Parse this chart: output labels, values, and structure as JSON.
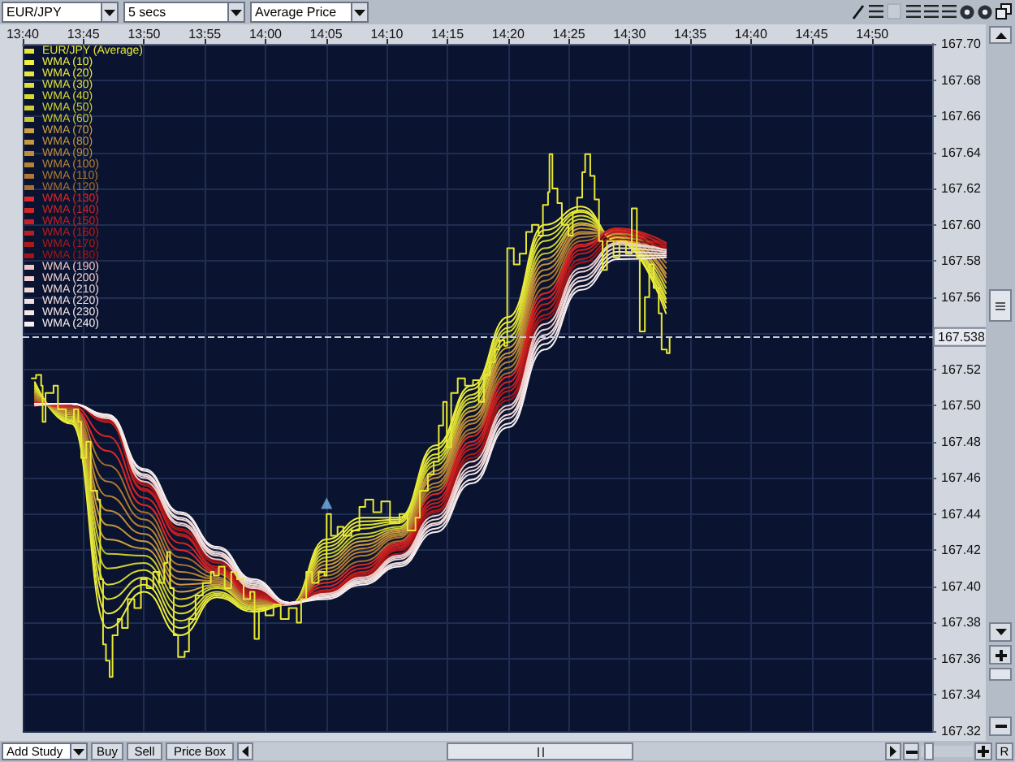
{
  "chart_data": {
    "type": "line",
    "title": "EUR/JPY",
    "annotations": [
      "5 secs",
      "Average Price",
      "Add Study",
      "Buy",
      "Sell",
      "Price Box",
      "R"
    ],
    "x": [
      13.6833,
      13.7333,
      13.7833,
      13.8333,
      13.8833,
      13.9333,
      13.9833,
      14.0333,
      14.0833,
      14.1333,
      14.1833,
      14.2333,
      14.2833,
      14.3333,
      14.3833,
      14.4333,
      14.4833,
      14.55
    ],
    "xlim": [
      13.6667,
      14.9167
    ],
    "xticks": [
      {
        "value": 13.6667,
        "label": "13:40"
      },
      {
        "value": 13.75,
        "label": "13:45"
      },
      {
        "value": 13.8333,
        "label": "13:50"
      },
      {
        "value": 13.9167,
        "label": "13:55"
      },
      {
        "value": 14,
        "label": "14:00"
      },
      {
        "value": 14.0833,
        "label": "14:05"
      },
      {
        "value": 14.1667,
        "label": "14:10"
      },
      {
        "value": 14.25,
        "label": "14:15"
      },
      {
        "value": 14.3333,
        "label": "14:20"
      },
      {
        "value": 14.4167,
        "label": "14:25"
      },
      {
        "value": 14.5,
        "label": "14:30"
      },
      {
        "value": 14.5833,
        "label": "14:35"
      },
      {
        "value": 14.6667,
        "label": "14:40"
      },
      {
        "value": 14.75,
        "label": "14:45"
      },
      {
        "value": 14.8333,
        "label": "14:50"
      }
    ],
    "ylim": [
      167.32,
      167.7
    ],
    "yticks": [
      167.32,
      167.34,
      167.36,
      167.38,
      {
        "value": 167.4,
        "label": "167.40"
      },
      167.42,
      167.44,
      167.46,
      167.48,
      {
        "value": 167.5,
        "label": "167.50"
      },
      167.52,
      {
        "value": 167.54,
        "label": null
      },
      167.56,
      167.58,
      {
        "value": 167.6,
        "label": "167.60"
      },
      167.62,
      167.64,
      167.66,
      167.68,
      {
        "value": 167.7,
        "label": "167.70"
      }
    ],
    "grid": true,
    "legend": "top left",
    "ref_lines": [
      {
        "axis": "y",
        "value": 167.538,
        "label": "167.538",
        "line_style": "dashed",
        "color": "#c8cedc"
      }
    ],
    "series": [
      {
        "name": "EUR/JPY (Average)",
        "type": "step",
        "color": "#e8e834",
        "x": [
          13.679,
          13.685,
          13.692,
          13.694,
          13.698,
          13.709,
          13.715,
          13.726,
          13.737,
          13.743,
          13.747,
          13.754,
          13.76,
          13.769,
          13.773,
          13.777,
          13.781,
          13.786,
          13.79,
          13.797,
          13.803,
          13.811,
          13.82,
          13.829,
          13.837,
          13.846,
          13.854,
          13.861,
          13.865,
          13.869,
          13.874,
          13.88,
          13.889,
          13.895,
          13.904,
          13.914,
          13.925,
          13.929,
          13.936,
          13.944,
          13.953,
          13.961,
          13.97,
          13.979,
          13.985,
          13.991,
          14.0,
          14.011,
          14.021,
          14.032,
          14.043,
          14.049,
          14.056,
          14.064,
          14.073,
          14.081,
          14.084,
          14.09,
          14.099,
          14.107,
          14.118,
          14.129,
          14.137,
          14.148,
          14.159,
          14.171,
          14.184,
          14.195,
          14.206,
          14.212,
          14.223,
          14.231,
          14.238,
          14.244,
          14.249,
          14.255,
          14.264,
          14.274,
          14.285,
          14.293,
          14.3,
          14.308,
          14.315,
          14.321,
          14.328,
          14.332,
          14.341,
          14.349,
          14.358,
          14.366,
          14.375,
          14.381,
          14.388,
          14.39,
          14.394,
          14.401,
          14.407,
          14.416,
          14.422,
          14.428,
          14.435,
          14.439,
          14.446,
          14.452,
          14.458,
          14.463,
          14.469,
          14.478,
          14.486,
          14.495,
          14.503,
          14.51,
          14.514,
          14.521,
          14.527,
          14.533,
          14.54,
          14.544,
          14.551,
          14.555
        ],
        "values": [
          167.515,
          167.517,
          167.511,
          167.491,
          167.507,
          167.511,
          167.498,
          167.491,
          167.498,
          167.491,
          167.471,
          167.48,
          167.453,
          167.448,
          167.404,
          167.368,
          167.359,
          167.35,
          167.373,
          167.382,
          167.377,
          167.393,
          167.388,
          167.404,
          167.399,
          167.408,
          167.402,
          167.413,
          167.419,
          167.399,
          167.373,
          167.361,
          167.364,
          167.382,
          167.395,
          167.402,
          167.408,
          167.406,
          167.411,
          167.399,
          167.408,
          167.404,
          167.393,
          167.397,
          167.371,
          167.388,
          167.384,
          167.39,
          167.382,
          167.388,
          167.38,
          167.393,
          167.408,
          167.402,
          167.408,
          167.406,
          167.44,
          167.428,
          167.433,
          167.428,
          167.431,
          167.444,
          167.448,
          167.441,
          167.447,
          167.435,
          167.44,
          167.431,
          167.438,
          167.453,
          167.462,
          167.469,
          167.489,
          167.502,
          167.477,
          167.507,
          167.515,
          167.511,
          167.514,
          167.502,
          167.517,
          167.524,
          167.531,
          167.536,
          167.533,
          167.587,
          167.578,
          167.584,
          167.596,
          167.6,
          167.594,
          167.611,
          167.618,
          167.639,
          167.62,
          167.612,
          167.6,
          167.594,
          167.607,
          167.615,
          167.629,
          167.639,
          167.627,
          167.614,
          167.591,
          167.575,
          167.591,
          167.582,
          167.591,
          167.584,
          167.609,
          167.582,
          167.541,
          167.56,
          167.578,
          167.565,
          167.551,
          167.531,
          167.529,
          167.538
        ]
      },
      {
        "name": "WMA (10)",
        "color": "#f0f040",
        "values": [
          167.513,
          167.49,
          167.377,
          167.397,
          167.373,
          167.394,
          167.386,
          167.39,
          167.426,
          167.438,
          167.438,
          167.478,
          167.511,
          167.549,
          167.6,
          167.61,
          167.591,
          167.551
        ]
      },
      {
        "name": "WMA (20)",
        "color": "#e8e83c",
        "values": [
          167.512,
          167.491,
          167.385,
          167.401,
          167.377,
          167.395,
          167.387,
          167.39,
          167.424,
          167.436,
          167.437,
          167.476,
          167.509,
          167.546,
          167.597,
          167.608,
          167.591,
          167.554
        ]
      },
      {
        "name": "WMA (30)",
        "color": "#e0e038",
        "values": [
          167.511,
          167.492,
          167.393,
          167.405,
          167.381,
          167.396,
          167.387,
          167.39,
          167.422,
          167.434,
          167.436,
          167.473,
          167.506,
          167.543,
          167.594,
          167.607,
          167.592,
          167.557
        ]
      },
      {
        "name": "WMA (40)",
        "color": "#d8d834",
        "values": [
          167.51,
          167.492,
          167.401,
          167.409,
          167.385,
          167.397,
          167.388,
          167.39,
          167.42,
          167.432,
          167.435,
          167.471,
          167.504,
          167.541,
          167.591,
          167.605,
          167.593,
          167.559
        ]
      },
      {
        "name": "WMA (50)",
        "color": "#d0d030",
        "values": [
          167.509,
          167.493,
          167.41,
          167.413,
          167.389,
          167.399,
          167.389,
          167.39,
          167.418,
          167.429,
          167.433,
          167.469,
          167.502,
          167.538,
          167.587,
          167.603,
          167.593,
          167.562
        ]
      },
      {
        "name": "WMA (60)",
        "color": "#c8c82c",
        "values": [
          167.508,
          167.494,
          167.418,
          167.417,
          167.393,
          167.4,
          167.389,
          167.39,
          167.416,
          167.427,
          167.432,
          167.467,
          167.499,
          167.535,
          167.584,
          167.601,
          167.594,
          167.565
        ]
      },
      {
        "name": "WMA (70)",
        "color": "#d0a040",
        "values": [
          167.507,
          167.495,
          167.426,
          167.421,
          167.397,
          167.401,
          167.39,
          167.39,
          167.414,
          167.425,
          167.431,
          167.464,
          167.497,
          167.532,
          167.581,
          167.6,
          167.594,
          167.568
        ]
      },
      {
        "name": "WMA (80)",
        "color": "#c8963c",
        "values": [
          167.507,
          167.496,
          167.434,
          167.425,
          167.401,
          167.402,
          167.391,
          167.39,
          167.412,
          167.423,
          167.43,
          167.462,
          167.494,
          167.529,
          167.578,
          167.598,
          167.595,
          167.571
        ]
      },
      {
        "name": "WMA (90)",
        "color": "#c08c38",
        "values": [
          167.506,
          167.496,
          167.442,
          167.429,
          167.404,
          167.403,
          167.391,
          167.39,
          167.41,
          167.421,
          167.429,
          167.46,
          167.492,
          167.527,
          167.575,
          167.596,
          167.595,
          167.573
        ]
      },
      {
        "name": "WMA (100)",
        "color": "#b88234",
        "values": [
          167.505,
          167.497,
          167.45,
          167.433,
          167.408,
          167.404,
          167.392,
          167.39,
          167.408,
          167.419,
          167.428,
          167.457,
          167.49,
          167.524,
          167.572,
          167.595,
          167.596,
          167.576
        ]
      },
      {
        "name": "WMA (110)",
        "color": "#b07830",
        "values": [
          167.504,
          167.498,
          167.458,
          167.437,
          167.412,
          167.405,
          167.392,
          167.39,
          167.406,
          167.417,
          167.427,
          167.455,
          167.487,
          167.521,
          167.569,
          167.593,
          167.596,
          167.579
        ]
      },
      {
        "name": "WMA (120)",
        "color": "#a86e2c",
        "values": [
          167.503,
          167.499,
          167.467,
          167.441,
          167.416,
          167.407,
          167.393,
          167.39,
          167.404,
          167.414,
          167.425,
          167.453,
          167.485,
          167.518,
          167.565,
          167.591,
          167.597,
          167.582
        ]
      },
      {
        "name": "WMA (130)",
        "color": "#e02828",
        "values": [
          167.502,
          167.499,
          167.475,
          167.445,
          167.42,
          167.408,
          167.394,
          167.39,
          167.402,
          167.412,
          167.424,
          167.451,
          167.483,
          167.516,
          167.562,
          167.589,
          167.597,
          167.584
        ]
      },
      {
        "name": "WMA (140)",
        "color": "#d42424",
        "values": [
          167.501,
          167.5,
          167.483,
          167.449,
          167.424,
          167.409,
          167.394,
          167.39,
          167.4,
          167.41,
          167.423,
          167.448,
          167.48,
          167.513,
          167.559,
          167.588,
          167.598,
          167.587
        ]
      },
      {
        "name": "WMA (150)",
        "color": "#c82020",
        "values": [
          167.5,
          167.501,
          167.491,
          167.453,
          167.428,
          167.41,
          167.395,
          167.39,
          167.398,
          167.408,
          167.422,
          167.446,
          167.478,
          167.51,
          167.556,
          167.586,
          167.598,
          167.59
        ]
      },
      {
        "name": "WMA (160)",
        "color": "#bc1c1c",
        "values": [
          167.5,
          167.501,
          167.491,
          167.454,
          167.429,
          167.411,
          167.396,
          167.39,
          167.397,
          167.407,
          167.421,
          167.444,
          167.476,
          167.508,
          167.553,
          167.584,
          167.596,
          167.589
        ]
      },
      {
        "name": "WMA (170)",
        "color": "#b01818",
        "values": [
          167.5,
          167.501,
          167.492,
          167.456,
          167.431,
          167.413,
          167.397,
          167.39,
          167.397,
          167.406,
          167.42,
          167.442,
          167.473,
          167.505,
          167.55,
          167.581,
          167.594,
          167.588
        ]
      },
      {
        "name": "WMA (180)",
        "color": "#a41414",
        "values": [
          167.5,
          167.501,
          167.492,
          167.457,
          167.432,
          167.414,
          167.398,
          167.39,
          167.396,
          167.406,
          167.418,
          167.441,
          167.471,
          167.503,
          167.548,
          167.579,
          167.592,
          167.587
        ]
      },
      {
        "name": "WMA (190)",
        "color": "#f0c8c8",
        "values": [
          167.5,
          167.501,
          167.493,
          167.458,
          167.434,
          167.415,
          167.399,
          167.39,
          167.396,
          167.405,
          167.417,
          167.439,
          167.469,
          167.5,
          167.545,
          167.576,
          167.59,
          167.586
        ]
      },
      {
        "name": "WMA (200)",
        "color": "#f0d0d0",
        "values": [
          167.501,
          167.501,
          167.493,
          167.46,
          167.435,
          167.417,
          167.4,
          167.391,
          167.395,
          167.404,
          167.416,
          167.437,
          167.466,
          167.498,
          167.542,
          167.574,
          167.589,
          167.586
        ]
      },
      {
        "name": "WMA (210)",
        "color": "#f0d8d8",
        "values": [
          167.501,
          167.501,
          167.494,
          167.461,
          167.437,
          167.418,
          167.401,
          167.391,
          167.395,
          167.403,
          167.415,
          167.435,
          167.464,
          167.495,
          167.539,
          167.571,
          167.587,
          167.585
        ]
      },
      {
        "name": "WMA (220)",
        "color": "#f4e0e0",
        "values": [
          167.501,
          167.501,
          167.494,
          167.462,
          167.438,
          167.419,
          167.402,
          167.391,
          167.394,
          167.403,
          167.413,
          167.434,
          167.462,
          167.493,
          167.537,
          167.569,
          167.585,
          167.584
        ]
      },
      {
        "name": "WMA (230)",
        "color": "#f4e8e8",
        "values": [
          167.501,
          167.501,
          167.495,
          167.464,
          167.44,
          167.421,
          167.403,
          167.391,
          167.394,
          167.402,
          167.412,
          167.432,
          167.459,
          167.49,
          167.534,
          167.566,
          167.583,
          167.583
        ]
      },
      {
        "name": "WMA (240)",
        "color": "#f8f0f0",
        "values": [
          167.501,
          167.501,
          167.495,
          167.465,
          167.441,
          167.422,
          167.404,
          167.391,
          167.393,
          167.401,
          167.411,
          167.43,
          167.457,
          167.488,
          167.531,
          167.564,
          167.581,
          167.582
        ]
      },
      {
        "type": "scatter",
        "color": "#78b4e6",
        "marker": "triangle",
        "x": [
          14.084
        ],
        "values": [
          167.446
        ]
      }
    ]
  }
}
